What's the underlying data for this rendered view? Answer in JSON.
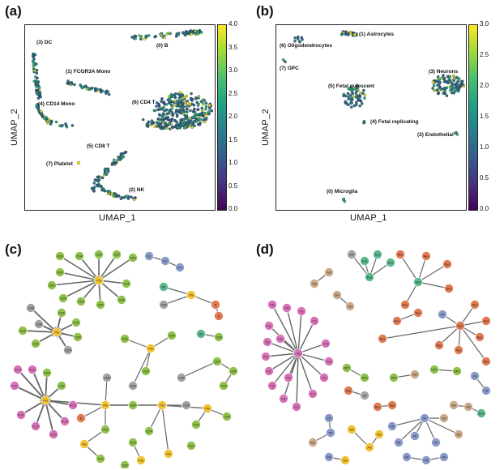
{
  "panels": {
    "a": {
      "label": "(a)"
    },
    "b": {
      "label": "(b)"
    },
    "c": {
      "label": "(c)"
    },
    "d": {
      "label": "(d)"
    }
  },
  "axes": {
    "xlabel": "UMAP_1",
    "ylabel": "UMAP_2"
  },
  "chart_data": [
    {
      "type": "scatter",
      "panel": "a",
      "xlabel": "UMAP_1",
      "ylabel": "UMAP_2",
      "colorbar": {
        "range": [
          0.0,
          4.0
        ],
        "ticks": [
          "0.0",
          "0.5",
          "1.0",
          "1.5",
          "2.0",
          "2.5",
          "3.0",
          "3.5",
          "4.0"
        ],
        "colormap": "viridis"
      },
      "clusters": [
        "(0) B",
        "(1) FCGR3A Mono",
        "(2) NK",
        "(3) DC",
        "(4) CD14 Mono",
        "(5) CD8 T",
        "(6) CD4 T",
        "(7) Platelet"
      ]
    },
    {
      "type": "scatter",
      "panel": "b",
      "xlabel": "UMAP_1",
      "ylabel": "UMAP_2",
      "colorbar": {
        "range": [
          0.0,
          3.0
        ],
        "ticks": [
          "0.0",
          "0.5",
          "1.0",
          "1.5",
          "2.0",
          "2.5",
          "3.0"
        ],
        "colormap": "viridis"
      },
      "clusters": [
        "(0) Microglia",
        "(1) Astrocytes",
        "(2) Endothelial",
        "(3) Neurons",
        "(4) Fetal replicating",
        "(5) Fetal quiescent",
        "(6) Oligodendrocytes",
        "(7) OPC"
      ]
    }
  ],
  "graph_c": {
    "node_labels": [
      "CD4",
      "CD8",
      "DC",
      "NK",
      "Pla",
      "CD14",
      "FCG",
      "B"
    ]
  },
  "graph_d": {
    "node_labels": [
      "Ast",
      "End",
      "Neu",
      "FQ",
      "FR",
      "Mic",
      "OPC",
      "Oli"
    ]
  },
  "colors": {
    "green": "#8fc24a",
    "gray": "#a3a3a3",
    "pink": "#d872b8",
    "yellow": "#f1c232",
    "orange": "#e07b54",
    "blue": "#8a9ac8",
    "teal": "#5bb98d",
    "tan": "#c9a98a"
  }
}
